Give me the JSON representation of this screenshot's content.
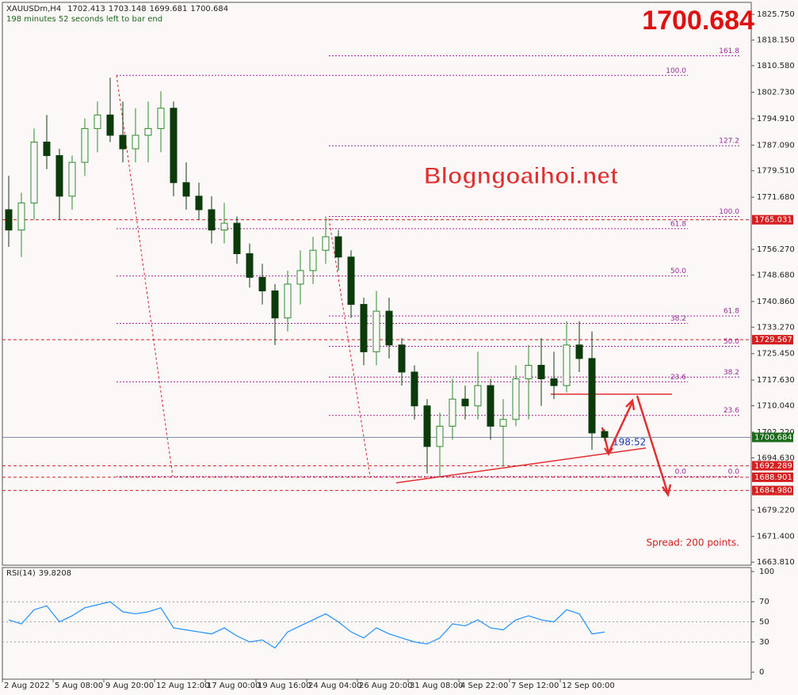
{
  "chart_data": [
    {
      "type": "candlestick",
      "title": "XAUUSDm,H4",
      "subtitle": "198 minutes 52 seconds left to bar end",
      "watermark": "Blogngoaihoi.net",
      "timer": "198:52",
      "spread_note": "Spread: 200 points.",
      "categories": [
        "2 Aug 2022",
        null,
        null,
        null,
        "5 Aug 08:00",
        null,
        null,
        null,
        "9 Aug 20:00",
        null,
        null,
        null,
        "12 Aug 12:00",
        null,
        null,
        null,
        "17 Aug 00:00",
        null,
        null,
        null,
        "19 Aug 16:00",
        null,
        null,
        null,
        "24 Aug 04:00",
        null,
        null,
        null,
        "26 Aug 20:00",
        null,
        null,
        null,
        "31 Aug 08:00",
        null,
        null,
        null,
        "4 Sep 22:00",
        null,
        null,
        null,
        "7 Sep 12:00",
        null,
        null,
        null,
        "12 Sep 00:00",
        null,
        null,
        null
      ],
      "open": [
        1768,
        1762,
        1770,
        1788,
        1784,
        1772,
        1782,
        1792,
        1796,
        1790,
        1786,
        1790,
        1792,
        1798,
        1776,
        1772,
        1768,
        1762,
        1764,
        1755,
        1748,
        1744,
        1736,
        1746,
        1750,
        1756,
        1760,
        1754,
        1740,
        1726,
        1738,
        1728,
        1720,
        1710,
        1698,
        1704,
        1712,
        1710,
        1716,
        1704,
        1706,
        1718,
        1722,
        1718,
        1716,
        1728,
        1724,
        1702.413
      ],
      "high": [
        1778,
        1773,
        1792,
        1796,
        1786,
        1784,
        1795,
        1800,
        1807,
        1800,
        1798,
        1800,
        1803,
        1800,
        1782,
        1776,
        1772,
        1770,
        1766,
        1758,
        1752,
        1746,
        1750,
        1756,
        1760,
        1766,
        1762,
        1756,
        1742,
        1744,
        1742,
        1730,
        1722,
        1712,
        1708,
        1718,
        1716,
        1726,
        1718,
        1712,
        1722,
        1728,
        1730,
        1726,
        1735,
        1735,
        1732,
        1703.148
      ],
      "low": [
        1757,
        1754,
        1765,
        1780,
        1765,
        1768,
        1778,
        1785,
        1788,
        1782,
        1782,
        1782,
        1785,
        1772,
        1768,
        1765,
        1758,
        1758,
        1752,
        1745,
        1740,
        1728,
        1732,
        1740,
        1746,
        1752,
        1750,
        1736,
        1722,
        1722,
        1724,
        1716,
        1706,
        1690,
        1689,
        1700,
        1706,
        1706,
        1700,
        1692,
        1704,
        1706,
        1710,
        1712,
        1714,
        1720,
        1697,
        1699.681
      ],
      "close": [
        1762,
        1770,
        1788,
        1784,
        1772,
        1782,
        1792,
        1796,
        1790,
        1786,
        1790,
        1792,
        1798,
        1776,
        1772,
        1768,
        1762,
        1764,
        1755,
        1748,
        1744,
        1736,
        1746,
        1750,
        1756,
        1760,
        1754,
        1740,
        1726,
        1738,
        1728,
        1720,
        1710,
        1698,
        1704,
        1712,
        1710,
        1716,
        1704,
        1706,
        1718,
        1722,
        1718,
        1716,
        1728,
        1724,
        1702,
        1700.684
      ],
      "up_color": "#2e8b2e",
      "down_color": "#0b3b0b",
      "ylim": [
        1662.9,
        1829.3
      ],
      "yticks": [
        {
          "value": 1825.75,
          "label": "1825.750"
        },
        {
          "value": 1818.15,
          "label": "1818.150"
        },
        {
          "value": 1810.58,
          "label": "1810.580"
        },
        {
          "value": 1802.73,
          "label": "1802.730"
        },
        {
          "value": 1794.91,
          "label": "1794.910"
        },
        {
          "value": 1787.09,
          "label": "1787.090"
        },
        {
          "value": 1779.51,
          "label": "1779.510"
        },
        {
          "value": 1771.68,
          "label": "1771.680"
        },
        {
          "value": 1756.27,
          "label": "1756.270"
        },
        {
          "value": 1748.68,
          "label": "1748.680"
        },
        {
          "value": 1740.86,
          "label": "1740.860"
        },
        {
          "value": 1733.27,
          "label": "1733.270"
        },
        {
          "value": 1725.45,
          "label": "1725.450"
        },
        {
          "value": 1717.63,
          "label": "1717.630"
        },
        {
          "value": 1710.04,
          "label": "1710.040"
        },
        {
          "value": 1702.22,
          "label": "1702.220"
        },
        {
          "value": 1694.63,
          "label": "1694.630"
        },
        {
          "value": 1679.22,
          "label": "1679.220"
        },
        {
          "value": 1671.4,
          "label": "1671.400"
        },
        {
          "value": 1663.81,
          "label": "1663.810"
        }
      ],
      "levels": [
        {
          "value": 1765.031
        },
        {
          "value": 1729.567
        },
        {
          "value": 1692.289
        },
        {
          "value": 1688.901
        },
        {
          "value": 1684.98,
          "label": "1684.980"
        }
      ],
      "level_color": "#d42020",
      "fib_color": "#9b2c9b",
      "fib_sets": [
        [
          {
            "ratio": "0.0",
            "price": 1689.1
          },
          {
            "ratio": "23.6",
            "price": 1717.1
          },
          {
            "ratio": "38.2",
            "price": 1734.4
          },
          {
            "ratio": "50.0",
            "price": 1748.4
          },
          {
            "ratio": "61.8",
            "price": 1762.4
          },
          {
            "ratio": "100.0",
            "price": 1807.7
          }
        ],
        [
          {
            "ratio": "0.0",
            "price": 1689.1
          },
          {
            "ratio": "23.6",
            "price": 1707.2
          },
          {
            "ratio": "38.2",
            "price": 1718.5
          },
          {
            "ratio": "50.0",
            "price": 1727.6
          },
          {
            "ratio": "61.8",
            "price": 1736.6
          },
          {
            "ratio": "100.0",
            "price": 1766.0
          },
          {
            "ratio": "127.2",
            "price": 1786.9
          },
          {
            "ratio": "161.8",
            "price": 1813.5
          }
        ]
      ]
    },
    {
      "type": "line",
      "title": "RSI(14)",
      "color": "#1e90ff",
      "values": [
        52,
        48,
        62,
        66,
        50,
        56,
        64,
        67,
        70,
        60,
        58,
        60,
        64,
        44,
        42,
        40,
        38,
        44,
        36,
        30,
        32,
        24,
        40,
        46,
        52,
        58,
        50,
        40,
        34,
        44,
        38,
        34,
        30,
        28,
        34,
        48,
        46,
        52,
        44,
        42,
        52,
        56,
        52,
        50,
        62,
        58,
        38,
        39.8208
      ],
      "ylim": [
        -7,
        104
      ],
      "yticks": [
        100,
        70,
        50,
        30,
        0
      ],
      "levels": [
        70,
        50,
        30
      ]
    }
  ]
}
